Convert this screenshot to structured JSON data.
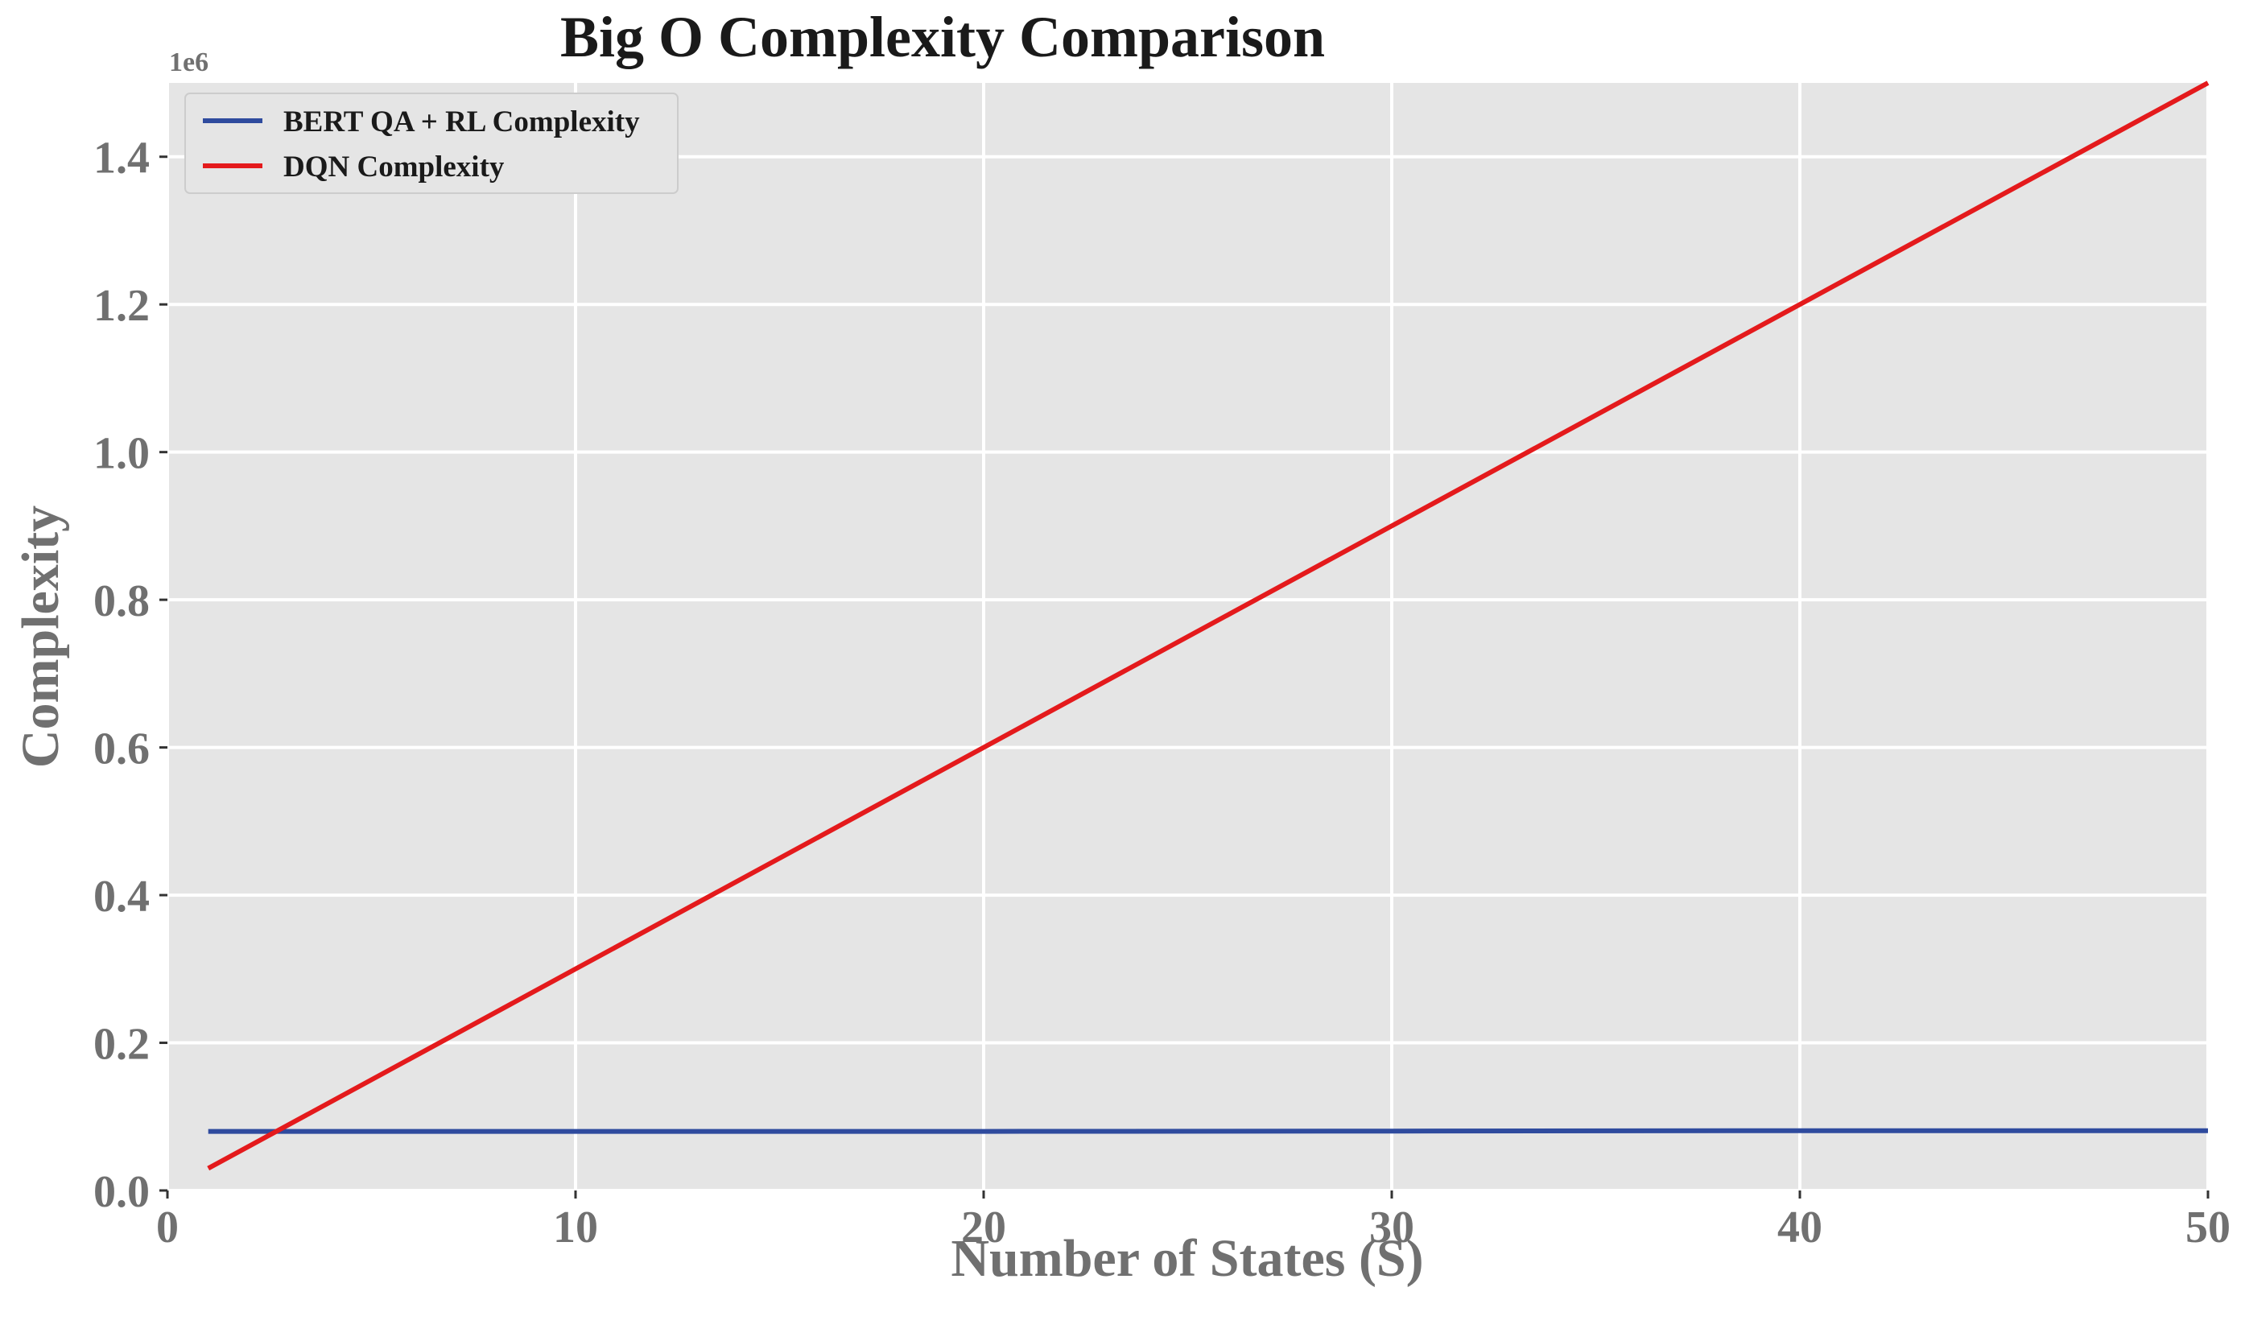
{
  "chart_data": {
    "type": "line",
    "title": "Big O Complexity Comparison",
    "xlabel": "Number of States (S)",
    "ylabel": "Complexity",
    "y_offset_label": "1e6",
    "xlim": [
      0,
      50
    ],
    "ylim": [
      0,
      1.5
    ],
    "x_ticks": [
      0,
      10,
      20,
      30,
      40,
      50
    ],
    "x_tick_labels": [
      "0",
      "10",
      "20",
      "30",
      "40",
      "50"
    ],
    "y_ticks": [
      0.0,
      0.2,
      0.4,
      0.6,
      0.8,
      1.0,
      1.2,
      1.4
    ],
    "y_tick_labels": [
      "0.0",
      "0.2",
      "0.4",
      "0.6",
      "0.8",
      "1.0",
      "1.2",
      "1.4"
    ],
    "grid": true,
    "legend_position": "top-left",
    "series": [
      {
        "name": "BERT QA + RL Complexity",
        "color": "#2f4b9e",
        "x": [
          1,
          10,
          20,
          30,
          40,
          50
        ],
        "y": [
          0.08,
          0.08,
          0.08,
          0.0805,
          0.081,
          0.081
        ]
      },
      {
        "name": "DQN Complexity",
        "color": "#e41a1c",
        "x": [
          1,
          10,
          20,
          30,
          40,
          50
        ],
        "y": [
          0.03,
          0.3,
          0.6,
          0.9,
          1.2,
          1.5
        ]
      }
    ]
  }
}
